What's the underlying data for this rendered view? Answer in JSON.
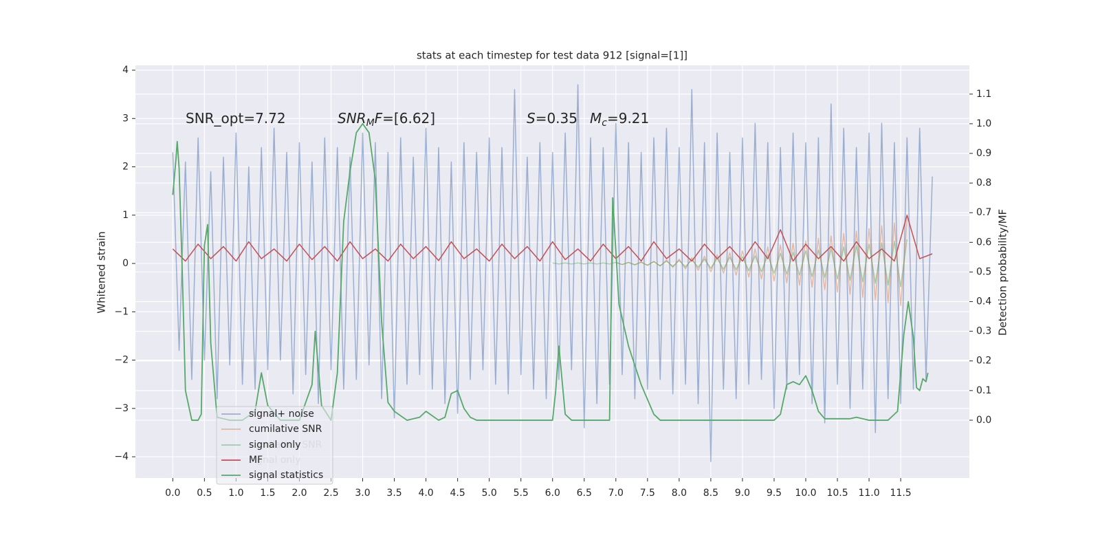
{
  "chart_data": {
    "type": "line",
    "title": "stats at each timestep for test data 912 [signal=[1]]",
    "ylabel": "Whitened strain",
    "y2label": "Detection probability/MF",
    "annotations": [
      {
        "parts": [
          {
            "text": "SNR_opt=7.72"
          }
        ]
      },
      {
        "parts": [
          {
            "text": "SNR",
            "italic": true
          },
          {
            "text": "M",
            "italic": true,
            "sub": true
          },
          {
            "text": "F",
            "italic": true
          },
          {
            "text": "=[6.62]"
          }
        ]
      },
      {
        "parts": [
          {
            "text": "S",
            "italic": true
          },
          {
            "text": "=0.35"
          }
        ]
      },
      {
        "parts": [
          {
            "text": "M",
            "italic": true
          },
          {
            "text": "c",
            "italic": true,
            "sub": true
          },
          {
            "text": "=9.21"
          }
        ]
      }
    ],
    "xlim": [
      -0.59,
      12.585
    ],
    "ylim": [
      -4.44,
      4.1
    ],
    "y2lim": [
      -0.195,
      1.197
    ],
    "xticks": [
      {
        "value": 0,
        "label": "0.0"
      },
      {
        "value": 0.5,
        "label": "0.5"
      },
      {
        "value": 1,
        "label": "1.0"
      },
      {
        "value": 1.5,
        "label": "1.5"
      },
      {
        "value": 2,
        "label": "2.0"
      },
      {
        "value": 2.5,
        "label": "2.5"
      },
      {
        "value": 3,
        "label": "3.0"
      },
      {
        "value": 3.5,
        "label": "3.5"
      },
      {
        "value": 4,
        "label": "4.0"
      },
      {
        "value": 4.5,
        "label": "4.5"
      },
      {
        "value": 5,
        "label": "5.0"
      },
      {
        "value": 5.5,
        "label": "5.5"
      },
      {
        "value": 6,
        "label": "6.0"
      },
      {
        "value": 6.5,
        "label": "6.5"
      },
      {
        "value": 7,
        "label": "7.0"
      },
      {
        "value": 7.5,
        "label": "7.5"
      },
      {
        "value": 8,
        "label": "8.0"
      },
      {
        "value": 8.5,
        "label": "8.5"
      },
      {
        "value": 9,
        "label": "9.0"
      },
      {
        "value": 9.5,
        "label": "9.5"
      },
      {
        "value": 10,
        "label": "10.0"
      },
      {
        "value": 10.5,
        "label": "10.5"
      },
      {
        "value": 11,
        "label": "11.0"
      },
      {
        "value": 11.5,
        "label": "11.5"
      }
    ],
    "yticks": [
      {
        "value": -4,
        "label": "−4"
      },
      {
        "value": -3,
        "label": "−3"
      },
      {
        "value": -2,
        "label": "−2"
      },
      {
        "value": -1,
        "label": "−1"
      },
      0,
      1,
      2,
      3,
      4
    ],
    "y2ticks": [
      {
        "value": 0,
        "label": "0.0"
      },
      {
        "value": 0.1,
        "label": "0.1"
      },
      {
        "value": 0.2,
        "label": "0.2"
      },
      {
        "value": 0.3,
        "label": "0.3"
      },
      {
        "value": 0.4,
        "label": "0.4"
      },
      {
        "value": 0.5,
        "label": "0.5"
      },
      {
        "value": 0.6,
        "label": "0.6"
      },
      {
        "value": 0.7,
        "label": "0.7"
      },
      {
        "value": 0.8,
        "label": "0.8"
      },
      {
        "value": 0.9,
        "label": "0.9"
      },
      {
        "value": 1,
        "label": "1.0"
      },
      {
        "value": 1.1,
        "label": "1.1"
      }
    ],
    "grid": true,
    "legend": "lower left",
    "series": [
      {
        "name": "signal+ noise",
        "color": "#4c72b0",
        "opacity": 0.5,
        "x": [
          0.0,
          0.1,
          0.2,
          0.3,
          0.4,
          0.5,
          0.6,
          0.7,
          0.8,
          0.9,
          1.0,
          1.1,
          1.2,
          1.3,
          1.4,
          1.5,
          1.6,
          1.7,
          1.8,
          1.9,
          2.0,
          2.1,
          2.2,
          2.3,
          2.4,
          2.5,
          2.6,
          2.7,
          2.8,
          2.9,
          3.0,
          3.1,
          3.2,
          3.3,
          3.4,
          3.5,
          3.6,
          3.7,
          3.8,
          3.9,
          4.0,
          4.1,
          4.2,
          4.3,
          4.4,
          4.5,
          4.6,
          4.7,
          4.8,
          4.9,
          5.0,
          5.1,
          5.2,
          5.3,
          5.4,
          5.5,
          5.6,
          5.7,
          5.8,
          5.9,
          6.0,
          6.1,
          6.2,
          6.3,
          6.4,
          6.5,
          6.6,
          6.7,
          6.8,
          6.9,
          7.0,
          7.1,
          7.2,
          7.3,
          7.4,
          7.5,
          7.6,
          7.7,
          7.8,
          7.9,
          8.0,
          8.1,
          8.2,
          8.3,
          8.4,
          8.5,
          8.6,
          8.7,
          8.8,
          8.9,
          9.0,
          9.1,
          9.2,
          9.3,
          9.4,
          9.5,
          9.6,
          9.7,
          9.8,
          9.9,
          10.0,
          10.1,
          10.2,
          10.3,
          10.4,
          10.5,
          10.6,
          10.7,
          10.8,
          10.9,
          11.0,
          11.1,
          11.2,
          11.3,
          11.4,
          11.5,
          11.6,
          11.7,
          11.8,
          11.9,
          12.0
        ],
        "values": [
          2.3,
          -1.8,
          2.1,
          -2.4,
          2.6,
          -2.0,
          1.9,
          -2.8,
          2.2,
          -2.1,
          2.7,
          -2.5,
          2.0,
          -2.6,
          2.4,
          -2.2,
          2.8,
          -2.0,
          2.3,
          -2.7,
          2.5,
          -2.3,
          2.1,
          -2.9,
          2.6,
          -2.2,
          2.4,
          -2.6,
          2.2,
          -2.4,
          2.7,
          -2.1,
          2.5,
          -2.8,
          2.3,
          -3.2,
          2.6,
          -2.5,
          2.2,
          -2.3,
          2.8,
          -2.6,
          2.4,
          -2.9,
          2.1,
          -3.1,
          2.5,
          -2.4,
          2.3,
          -2.2,
          2.6,
          -2.5,
          2.4,
          -2.7,
          3.6,
          -2.3,
          2.2,
          -2.6,
          2.5,
          -2.8,
          2.3,
          -2.4,
          2.7,
          -2.2,
          3.7,
          -3.4,
          2.6,
          -2.9,
          2.4,
          -2.5,
          2.9,
          -2.3,
          2.5,
          -2.8,
          2.3,
          -2.6,
          2.6,
          -2.4,
          2.8,
          -2.7,
          2.4,
          -2.5,
          3.6,
          -2.9,
          2.5,
          -4.1,
          2.7,
          -2.6,
          2.3,
          -2.8,
          2.6,
          -2.5,
          2.9,
          -2.4,
          2.5,
          -3.0,
          2.4,
          -2.6,
          2.7,
          -2.3,
          2.5,
          -2.9,
          2.6,
          -3.3,
          3.3,
          -2.5,
          2.8,
          -3.0,
          2.4,
          -2.6,
          2.7,
          -3.5,
          2.9,
          -2.8,
          2.5,
          -2.9,
          2.6,
          -2.6,
          2.8,
          -2.4,
          1.8
        ]
      },
      {
        "name": "cumilative SNR",
        "color": "#dd8452",
        "opacity": 0.5,
        "x": [
          7.0,
          7.1,
          7.2,
          7.3,
          7.4,
          7.5,
          7.6,
          7.7,
          7.8,
          7.9,
          8.0,
          8.1,
          8.2,
          8.3,
          8.4,
          8.5,
          8.6,
          8.7,
          8.8,
          8.9,
          9.0,
          9.1,
          9.2,
          9.3,
          9.4,
          9.5,
          9.6,
          9.7,
          9.8,
          9.9,
          10.0,
          10.1,
          10.2,
          10.3,
          10.4,
          10.5,
          10.6,
          10.7,
          10.8,
          10.9,
          11.0,
          11.1,
          11.2,
          11.3,
          11.4,
          11.5,
          11.6
        ],
        "values": [
          0.02,
          -0.02,
          0.02,
          -0.02,
          0.02,
          -0.03,
          0.04,
          -0.05,
          0.07,
          -0.08,
          0.09,
          -0.11,
          0.12,
          -0.14,
          0.15,
          -0.17,
          0.18,
          -0.2,
          0.22,
          -0.24,
          0.26,
          -0.28,
          0.3,
          -0.32,
          0.34,
          -0.36,
          0.38,
          -0.4,
          0.42,
          -0.45,
          0.47,
          -0.49,
          0.52,
          -0.54,
          0.57,
          -0.59,
          0.62,
          -0.64,
          0.67,
          -0.7,
          0.72,
          -0.75,
          0.78,
          -0.81,
          0.84,
          -0.87,
          0.9
        ]
      },
      {
        "name": "signal only",
        "color": "#55a868",
        "opacity": 0.5,
        "x": [
          6.0,
          6.1,
          6.2,
          6.3,
          6.4,
          6.5,
          6.6,
          6.7,
          6.8,
          6.9,
          7.0,
          7.1,
          7.2,
          7.3,
          7.4,
          7.5,
          7.6,
          7.7,
          7.8,
          7.9,
          8.0,
          8.1,
          8.2,
          8.3,
          8.4,
          8.5,
          8.6,
          8.7,
          8.8,
          8.9,
          9.0,
          9.1,
          9.2,
          9.3,
          9.4,
          9.5,
          9.6,
          9.7,
          9.8,
          9.9,
          10.0,
          10.1,
          10.2,
          10.3,
          10.4,
          10.5,
          10.6,
          10.7,
          10.8,
          10.9,
          11.0,
          11.1,
          11.2,
          11.3,
          11.4,
          11.5,
          11.6
        ],
        "values": [
          0.01,
          -0.01,
          0.01,
          -0.01,
          0.01,
          -0.01,
          0.01,
          -0.01,
          0.01,
          -0.01,
          0.02,
          -0.02,
          0.02,
          -0.03,
          0.03,
          -0.04,
          0.04,
          -0.05,
          0.05,
          -0.06,
          0.06,
          -0.07,
          0.08,
          -0.08,
          0.09,
          -0.1,
          0.11,
          -0.12,
          0.13,
          -0.13,
          0.14,
          -0.15,
          0.16,
          -0.17,
          0.18,
          -0.2,
          0.21,
          -0.22,
          0.23,
          -0.24,
          0.26,
          -0.27,
          0.28,
          -0.29,
          0.31,
          -0.32,
          0.34,
          -0.35,
          0.37,
          -0.38,
          0.4,
          -0.41,
          0.43,
          -0.45,
          0.46,
          -0.48,
          0.5
        ]
      },
      {
        "name": "MF",
        "color": "#c44e52",
        "opacity": 1,
        "x": [
          0.0,
          0.2,
          0.4,
          0.6,
          0.8,
          1.0,
          1.2,
          1.4,
          1.6,
          1.8,
          2.0,
          2.2,
          2.4,
          2.6,
          2.8,
          3.0,
          3.2,
          3.4,
          3.6,
          3.8,
          4.0,
          4.2,
          4.4,
          4.6,
          4.8,
          5.0,
          5.2,
          5.4,
          5.6,
          5.8,
          6.0,
          6.2,
          6.4,
          6.6,
          6.8,
          7.0,
          7.2,
          7.4,
          7.6,
          7.8,
          8.0,
          8.2,
          8.4,
          8.6,
          8.8,
          9.0,
          9.2,
          9.4,
          9.6,
          9.8,
          10.0,
          10.2,
          10.4,
          10.6,
          10.8,
          11.0,
          11.2,
          11.4,
          11.6,
          11.8,
          12.0
        ],
        "values": [
          0.3,
          0.05,
          0.4,
          0.1,
          0.35,
          0.05,
          0.45,
          0.1,
          0.3,
          0.05,
          0.4,
          0.08,
          0.35,
          0.05,
          0.45,
          0.1,
          0.3,
          0.05,
          0.4,
          0.1,
          0.35,
          0.06,
          0.45,
          0.1,
          0.3,
          0.05,
          0.4,
          0.1,
          0.35,
          0.05,
          0.45,
          0.08,
          0.3,
          0.05,
          0.4,
          0.1,
          0.35,
          0.05,
          0.45,
          0.1,
          0.3,
          0.05,
          0.4,
          0.1,
          0.35,
          0.05,
          0.45,
          0.1,
          0.7,
          0.05,
          0.4,
          0.1,
          0.35,
          0.05,
          0.45,
          0.1,
          0.3,
          0.05,
          1.0,
          0.1,
          0.2
        ]
      },
      {
        "name": "signal statistics",
        "color": "#55a868",
        "opacity": 1,
        "axis": "y2",
        "x": [
          0.0,
          0.05,
          0.07,
          0.1,
          0.15,
          0.2,
          0.3,
          0.4,
          0.45,
          0.5,
          0.55,
          0.6,
          0.7,
          0.9,
          1.1,
          1.3,
          1.4,
          1.5,
          1.7,
          2.0,
          2.2,
          2.25,
          2.35,
          2.5,
          2.6,
          2.7,
          2.8,
          2.9,
          3.0,
          3.1,
          3.2,
          3.3,
          3.4,
          3.5,
          3.7,
          3.9,
          4.0,
          4.2,
          4.3,
          4.4,
          4.5,
          4.6,
          4.7,
          4.8,
          5.0,
          5.5,
          6.0,
          6.05,
          6.1,
          6.2,
          6.3,
          6.8,
          6.9,
          6.95,
          7.05,
          7.2,
          7.4,
          7.6,
          7.7,
          8.0,
          9.0,
          9.5,
          9.6,
          9.7,
          9.8,
          9.9,
          10.0,
          10.1,
          10.2,
          10.3,
          10.7,
          10.8,
          11.0,
          11.3,
          11.45,
          11.55,
          11.62,
          11.7,
          11.75,
          11.8,
          11.85,
          11.9,
          11.93
        ],
        "values": [
          0.76,
          0.88,
          0.94,
          0.85,
          0.5,
          0.1,
          0.0,
          0.0,
          0.02,
          0.59,
          0.66,
          0.26,
          0.01,
          0.0,
          0.0,
          0.03,
          0.16,
          0.05,
          0.0,
          0.0,
          0.12,
          0.3,
          0.05,
          0.0,
          0.16,
          0.67,
          0.84,
          0.97,
          1.0,
          0.97,
          0.81,
          0.33,
          0.06,
          0.03,
          0.0,
          0.01,
          0.03,
          0.0,
          0.01,
          0.09,
          0.1,
          0.04,
          0.01,
          0.0,
          0.0,
          0.0,
          0.0,
          0.1,
          0.25,
          0.02,
          0.0,
          0.0,
          0.0,
          0.75,
          0.39,
          0.25,
          0.12,
          0.02,
          0.0,
          0.0,
          0.0,
          0.0,
          0.02,
          0.12,
          0.13,
          0.12,
          0.15,
          0.1,
          0.03,
          0.005,
          0.005,
          0.01,
          0.0,
          0.0,
          0.03,
          0.29,
          0.4,
          0.28,
          0.11,
          0.1,
          0.14,
          0.13,
          0.16
        ]
      }
    ]
  }
}
